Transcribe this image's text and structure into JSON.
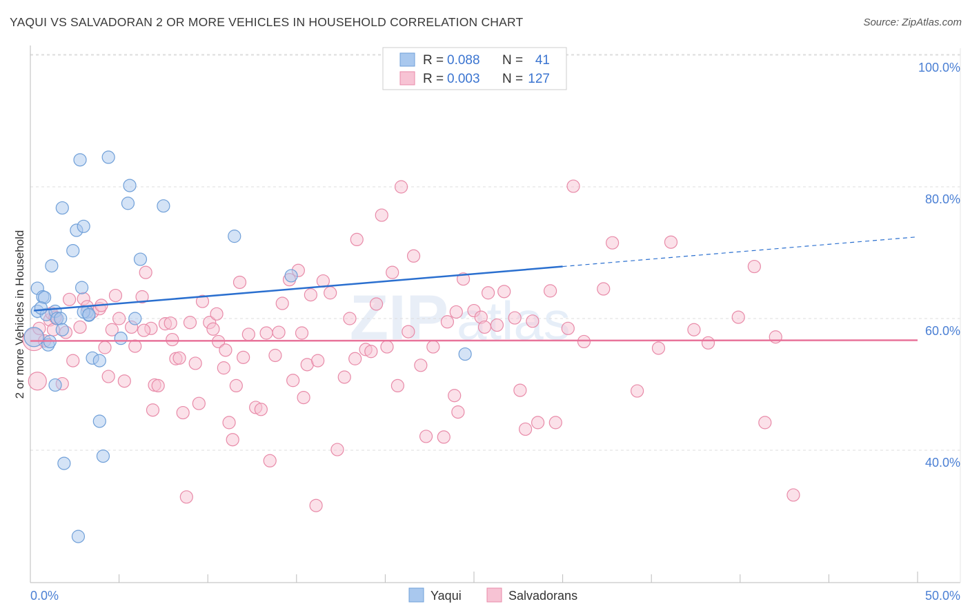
{
  "title": "YAQUI VS SALVADORAN 2 OR MORE VEHICLES IN HOUSEHOLD CORRELATION CHART",
  "source": "Source: ZipAtlas.com",
  "watermark": {
    "zip": "ZIP",
    "atlas": "atlas"
  },
  "colors": {
    "yaqui_fill": "#a9c8ee",
    "yaqui_stroke": "#6f9fd8",
    "yaqui_line": "#2a6fcf",
    "salv_fill": "#f7c3d4",
    "salv_stroke": "#e88aa8",
    "salv_line": "#e8739a",
    "grid": "#dcdcdc",
    "tick_text": "#4a7fd4"
  },
  "legend": {
    "rows": [
      {
        "r_label": "R =",
        "r_value": "0.088",
        "n_label": "N =",
        "n_value": "41"
      },
      {
        "r_label": "R =",
        "r_value": "0.003",
        "n_label": "N =",
        "n_value": "127"
      }
    ]
  },
  "bottom_legend": {
    "items": [
      "Yaqui",
      "Salvadorans"
    ]
  },
  "chart_data": {
    "type": "scatter",
    "title": "YAQUI VS SALVADORAN 2 OR MORE VEHICLES IN HOUSEHOLD CORRELATION CHART",
    "xlabel": "",
    "ylabel": "2 or more Vehicles in Household",
    "xlim": [
      0,
      50
    ],
    "ylim": [
      18,
      102
    ],
    "x_tick_labels": {
      "left": "0.0%",
      "right": "50.0%"
    },
    "y_ticks": [
      {
        "value": 40,
        "label": "40.0%"
      },
      {
        "value": 60,
        "label": "60.0%"
      },
      {
        "value": 80,
        "label": "80.0%"
      },
      {
        "value": 100,
        "label": "100.0%"
      }
    ],
    "legend_placement": "top-center",
    "series": [
      {
        "name": "Yaqui",
        "r": 0.088,
        "n": 41,
        "trend": {
          "x0": 0.2,
          "y0": 61.2,
          "x1": 30.0,
          "y1": 67.9,
          "dash_to_x": 50.0,
          "dash_to_y": 72.4
        },
        "points": [
          [
            0.2,
            57.2,
            14
          ],
          [
            0.4,
            64.6,
            9
          ],
          [
            0.4,
            61.1,
            9
          ],
          [
            0.7,
            63.3,
            9
          ],
          [
            0.8,
            63.2,
            9
          ],
          [
            0.9,
            60.6,
            9
          ],
          [
            1.0,
            56.0,
            9
          ],
          [
            1.1,
            56.5,
            9
          ],
          [
            1.4,
            61.1,
            9
          ],
          [
            1.5,
            60.0,
            9
          ],
          [
            1.4,
            49.9,
            9
          ],
          [
            1.2,
            68.0,
            9
          ],
          [
            1.7,
            60.0,
            9
          ],
          [
            1.8,
            58.3,
            9
          ],
          [
            1.8,
            76.8,
            9
          ],
          [
            2.4,
            70.3,
            9
          ],
          [
            2.6,
            73.4,
            9
          ],
          [
            2.9,
            64.7,
            9
          ],
          [
            3.0,
            74.0,
            9
          ],
          [
            3.2,
            61.0,
            9
          ],
          [
            3.3,
            60.5,
            9
          ],
          [
            2.8,
            84.1,
            9
          ],
          [
            3.0,
            61.0,
            9
          ],
          [
            3.5,
            54.0,
            9
          ],
          [
            3.9,
            53.6,
            9
          ],
          [
            3.9,
            44.4,
            9
          ],
          [
            4.4,
            84.5,
            9
          ],
          [
            4.1,
            39.1,
            9
          ],
          [
            5.1,
            57.0,
            9
          ],
          [
            5.6,
            80.2,
            9
          ],
          [
            5.5,
            77.5,
            9
          ],
          [
            5.9,
            60.0,
            9
          ],
          [
            6.2,
            69.0,
            9
          ],
          [
            7.5,
            77.1,
            9
          ],
          [
            1.9,
            38.0,
            9
          ],
          [
            2.7,
            26.9,
            9
          ],
          [
            11.5,
            72.5,
            9
          ],
          [
            14.7,
            66.5,
            9
          ],
          [
            24.5,
            54.6,
            9
          ],
          [
            0.6,
            61.6,
            9
          ],
          [
            3.3,
            60.6,
            9
          ]
        ]
      },
      {
        "name": "Salvadorans",
        "r": 0.003,
        "n": 127,
        "trend": {
          "x0": 0,
          "y0": 56.6,
          "x1": 50,
          "y1": 56.7
        },
        "points": [
          [
            0.2,
            56.8,
            16
          ],
          [
            0.4,
            50.5,
            13
          ],
          [
            0.5,
            58.5,
            9
          ],
          [
            0.8,
            56.6,
            9
          ],
          [
            1.1,
            59.8,
            9
          ],
          [
            1.2,
            60.8,
            9
          ],
          [
            1.3,
            58.3,
            9
          ],
          [
            1.5,
            60.0,
            9
          ],
          [
            1.8,
            50.1,
            9
          ],
          [
            2.2,
            62.9,
            9
          ],
          [
            2.4,
            53.6,
            9
          ],
          [
            2.8,
            58.7,
            9
          ],
          [
            3.0,
            63.0,
            9
          ],
          [
            3.2,
            61.8,
            9
          ],
          [
            3.5,
            61.0,
            9
          ],
          [
            3.9,
            61.5,
            9
          ],
          [
            4.0,
            62.0,
            9
          ],
          [
            4.2,
            55.6,
            9
          ],
          [
            4.4,
            51.2,
            9
          ],
          [
            4.6,
            58.3,
            9
          ],
          [
            4.8,
            63.5,
            9
          ],
          [
            5.0,
            60.0,
            9
          ],
          [
            5.3,
            50.5,
            9
          ],
          [
            5.7,
            58.7,
            9
          ],
          [
            5.9,
            55.8,
            9
          ],
          [
            6.3,
            63.3,
            9
          ],
          [
            6.5,
            67.0,
            9
          ],
          [
            6.8,
            58.5,
            9
          ],
          [
            7.0,
            49.9,
            9
          ],
          [
            7.2,
            49.8,
            9
          ],
          [
            7.6,
            59.2,
            9
          ],
          [
            7.9,
            59.3,
            9
          ],
          [
            8.0,
            56.8,
            9
          ],
          [
            8.2,
            53.9,
            9
          ],
          [
            8.4,
            54.0,
            9
          ],
          [
            8.6,
            45.7,
            9
          ],
          [
            8.8,
            32.9,
            9
          ],
          [
            9.0,
            59.4,
            9
          ],
          [
            9.3,
            53.2,
            9
          ],
          [
            9.5,
            47.1,
            9
          ],
          [
            9.7,
            62.6,
            9
          ],
          [
            10.1,
            59.4,
            9
          ],
          [
            10.3,
            58.4,
            9
          ],
          [
            10.5,
            60.7,
            9
          ],
          [
            10.6,
            56.5,
            9
          ],
          [
            10.9,
            52.5,
            9
          ],
          [
            11.2,
            44.2,
            9
          ],
          [
            11.4,
            41.6,
            9
          ],
          [
            11.6,
            49.8,
            9
          ],
          [
            11.8,
            65.5,
            9
          ],
          [
            12.0,
            54.1,
            9
          ],
          [
            12.3,
            57.6,
            9
          ],
          [
            12.7,
            46.5,
            9
          ],
          [
            13.0,
            46.2,
            9
          ],
          [
            13.3,
            57.8,
            9
          ],
          [
            13.5,
            38.4,
            9
          ],
          [
            13.8,
            54.4,
            9
          ],
          [
            14.0,
            57.9,
            9
          ],
          [
            14.2,
            62.3,
            9
          ],
          [
            14.6,
            65.9,
            9
          ],
          [
            14.8,
            50.6,
            9
          ],
          [
            15.1,
            67.3,
            9
          ],
          [
            15.4,
            48.0,
            9
          ],
          [
            15.6,
            53.0,
            9
          ],
          [
            15.8,
            63.6,
            9
          ],
          [
            16.2,
            53.6,
            9
          ],
          [
            16.5,
            65.7,
            9
          ],
          [
            16.9,
            63.9,
            9
          ],
          [
            17.3,
            40.1,
            9
          ],
          [
            17.7,
            51.1,
            9
          ],
          [
            18.0,
            60.0,
            9
          ],
          [
            18.3,
            53.9,
            9
          ],
          [
            18.4,
            72.0,
            9
          ],
          [
            18.9,
            55.3,
            9
          ],
          [
            19.2,
            55.0,
            9
          ],
          [
            19.5,
            62.2,
            9
          ],
          [
            19.8,
            75.7,
            9
          ],
          [
            20.1,
            55.7,
            9
          ],
          [
            20.4,
            67.0,
            9
          ],
          [
            20.7,
            49.8,
            9
          ],
          [
            20.9,
            80.0,
            9
          ],
          [
            21.3,
            58.0,
            9
          ],
          [
            21.6,
            69.5,
            9
          ],
          [
            22.0,
            52.9,
            9
          ],
          [
            22.3,
            42.1,
            9
          ],
          [
            22.7,
            55.7,
            9
          ],
          [
            23.3,
            42.0,
            9
          ],
          [
            23.5,
            59.5,
            9
          ],
          [
            23.9,
            48.3,
            9
          ],
          [
            24.1,
            45.8,
            9
          ],
          [
            24.4,
            66.0,
            9
          ],
          [
            25.0,
            61.2,
            9
          ],
          [
            25.4,
            60.2,
            9
          ],
          [
            25.6,
            58.7,
            9
          ],
          [
            25.8,
            63.9,
            9
          ],
          [
            26.3,
            59.0,
            9
          ],
          [
            26.7,
            64.1,
            9
          ],
          [
            27.3,
            60.1,
            9
          ],
          [
            27.6,
            49.1,
            9
          ],
          [
            27.9,
            43.2,
            9
          ],
          [
            28.3,
            59.6,
            9
          ],
          [
            28.6,
            44.2,
            9
          ],
          [
            29.3,
            64.2,
            9
          ],
          [
            29.6,
            44.2,
            9
          ],
          [
            30.3,
            58.5,
            9
          ],
          [
            30.6,
            80.1,
            9
          ],
          [
            31.2,
            56.5,
            9
          ],
          [
            32.3,
            64.5,
            9
          ],
          [
            32.8,
            71.5,
            9
          ],
          [
            34.2,
            49.0,
            9
          ],
          [
            35.4,
            55.5,
            9
          ],
          [
            36.1,
            71.6,
            9
          ],
          [
            37.4,
            58.3,
            9
          ],
          [
            38.2,
            56.3,
            9
          ],
          [
            39.9,
            60.2,
            9
          ],
          [
            40.8,
            67.9,
            9
          ],
          [
            41.4,
            44.2,
            9
          ],
          [
            42.0,
            57.2,
            9
          ],
          [
            43.0,
            33.2,
            9
          ],
          [
            16.1,
            31.6,
            9
          ],
          [
            6.4,
            58.2,
            9
          ],
          [
            2.0,
            57.9,
            9
          ],
          [
            15.3,
            57.8,
            9
          ],
          [
            6.9,
            46.1,
            9
          ],
          [
            11.0,
            55.2,
            9
          ],
          [
            24.0,
            61.0,
            9
          ],
          [
            1.4,
            60.2,
            9
          ]
        ]
      }
    ]
  }
}
